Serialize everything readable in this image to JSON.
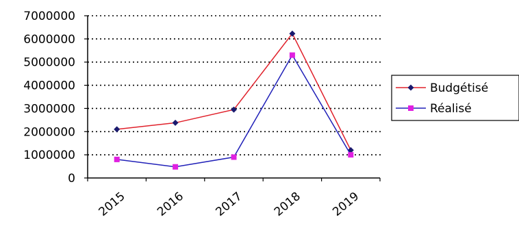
{
  "chart_data": {
    "type": "line",
    "categories": [
      "2015",
      "2016",
      "2017",
      "2018",
      "2019"
    ],
    "series": [
      {
        "name": "Budgétisé",
        "values": [
          2100000,
          2380000,
          2950000,
          6230000,
          1200000
        ],
        "line_color": "#e0202a",
        "marker_color": "#1a1a6e",
        "marker": "diamond"
      },
      {
        "name": "Réalisé",
        "values": [
          800000,
          480000,
          900000,
          5300000,
          1000000
        ],
        "line_color": "#2020b8",
        "marker_color": "#e020e0",
        "marker": "square"
      }
    ],
    "y_ticks": [
      "7000000",
      "6000000",
      "5000000",
      "4000000",
      "3000000",
      "2000000",
      "1000000",
      "0"
    ],
    "ylim": [
      0,
      7000000
    ],
    "grid": "horizontal-dotted",
    "legend_position": "right"
  }
}
